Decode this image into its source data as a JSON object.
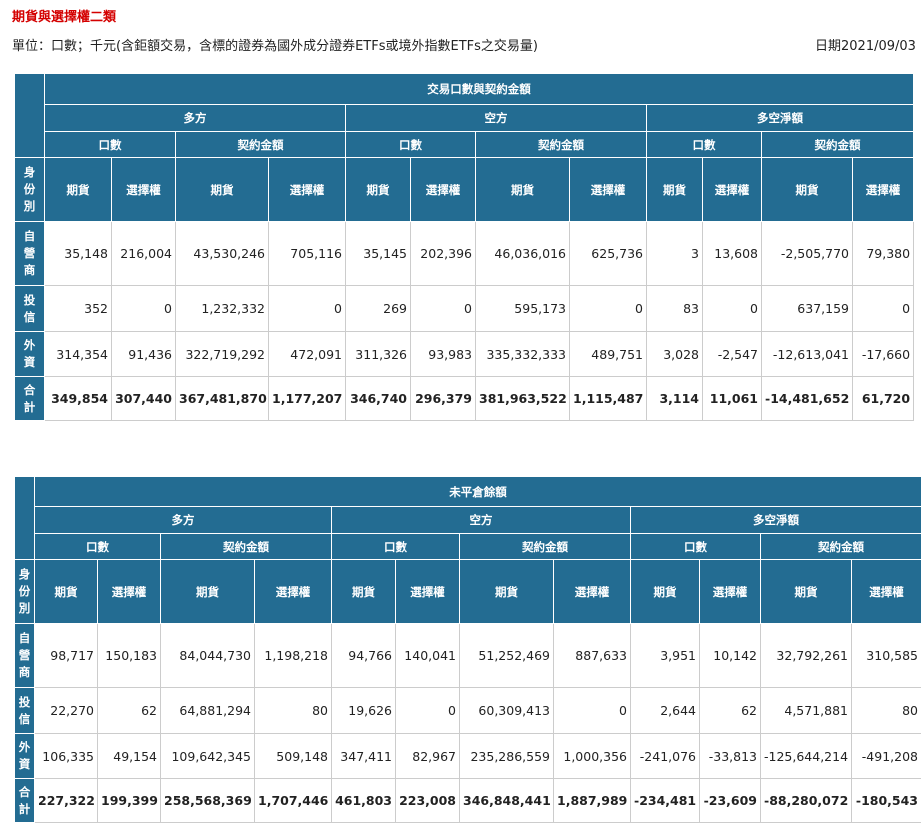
{
  "header": {
    "title": "期貨與選擇權二類",
    "unit": "單位：口數；千元(含鉅額交易，含標的證券為國外成分證券ETFs或境外指數ETFs之交易量)",
    "date": "日期2021/09/03"
  },
  "tables": [
    {
      "title": "交易口數與契約金額",
      "groups": [
        "多方",
        "空方",
        "多空淨額"
      ],
      "subgroups": [
        "口數",
        "契約金額"
      ],
      "columns": [
        "期貨",
        "選擇權"
      ],
      "row_header": "身份別",
      "rows": [
        {
          "label": "自營商",
          "values": [
            "35,148",
            "216,004",
            "43,530,246",
            "705,116",
            "35,145",
            "202,396",
            "46,036,016",
            "625,736",
            "3",
            "13,608",
            "-2,505,770",
            "79,380"
          ]
        },
        {
          "label": "投信",
          "values": [
            "352",
            "0",
            "1,232,332",
            "0",
            "269",
            "0",
            "595,173",
            "0",
            "83",
            "0",
            "637,159",
            "0"
          ]
        },
        {
          "label": "外資",
          "values": [
            "314,354",
            "91,436",
            "322,719,292",
            "472,091",
            "311,326",
            "93,983",
            "335,332,333",
            "489,751",
            "3,028",
            "-2,547",
            "-12,613,041",
            "-17,660"
          ]
        },
        {
          "label": "合計",
          "values": [
            "349,854",
            "307,440",
            "367,481,870",
            "1,177,207",
            "346,740",
            "296,379",
            "381,963,522",
            "1,115,487",
            "3,114",
            "11,061",
            "-14,481,652",
            "61,720"
          ]
        }
      ]
    },
    {
      "title": "未平倉餘額",
      "groups": [
        "多方",
        "空方",
        "多空淨額"
      ],
      "subgroups": [
        "口數",
        "契約金額"
      ],
      "columns": [
        "期貨",
        "選擇權"
      ],
      "row_header": "身份別",
      "rows": [
        {
          "label": "自營商",
          "values": [
            "98,717",
            "150,183",
            "84,044,730",
            "1,198,218",
            "94,766",
            "140,041",
            "51,252,469",
            "887,633",
            "3,951",
            "10,142",
            "32,792,261",
            "310,585"
          ]
        },
        {
          "label": "投信",
          "values": [
            "22,270",
            "62",
            "64,881,294",
            "80",
            "19,626",
            "0",
            "60,309,413",
            "0",
            "2,644",
            "62",
            "4,571,881",
            "80"
          ]
        },
        {
          "label": "外資",
          "values": [
            "106,335",
            "49,154",
            "109,642,345",
            "509,148",
            "347,411",
            "82,967",
            "235,286,559",
            "1,000,356",
            "-241,076",
            "-33,813",
            "-125,644,214",
            "-491,208"
          ]
        },
        {
          "label": "合計",
          "values": [
            "227,322",
            "199,399",
            "258,568,369",
            "1,707,446",
            "461,803",
            "223,008",
            "346,848,441",
            "1,887,989",
            "-234,481",
            "-23,609",
            "-88,280,072",
            "-180,543"
          ]
        }
      ]
    }
  ]
}
